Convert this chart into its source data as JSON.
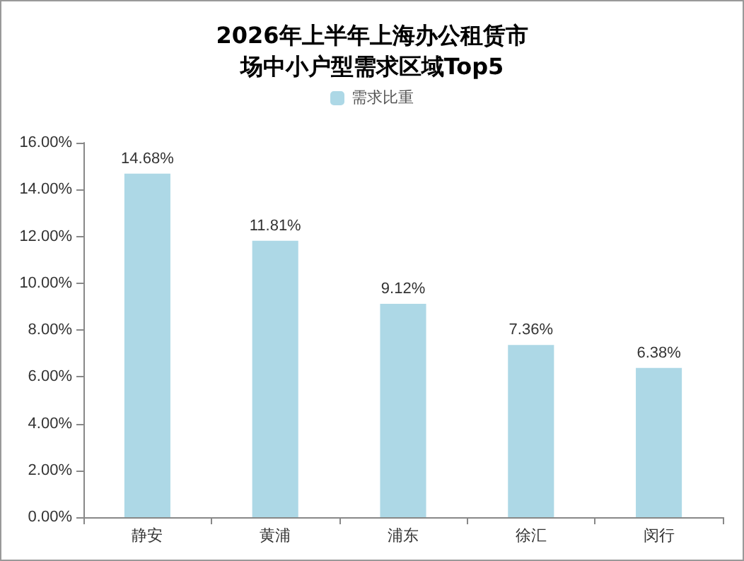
{
  "chart_data": {
    "type": "bar",
    "title": "2026年上半年上海办公租赁市场中小户型需求区域Top5",
    "categories": [
      "静安",
      "黄浦",
      "浦东",
      "徐汇",
      "闵行"
    ],
    "series": [
      {
        "name": "需求比重",
        "color": "#add8e6",
        "values": [
          14.68,
          11.81,
          9.12,
          7.36,
          6.38
        ],
        "value_labels": [
          "14.68%",
          "11.81%",
          "9.12%",
          "7.36%",
          "6.38%"
        ]
      }
    ],
    "ylim": [
      0,
      16
    ],
    "yticks": [
      {
        "value": 0,
        "label": "0.00%"
      },
      {
        "value": 2,
        "label": "2.00%"
      },
      {
        "value": 4,
        "label": "4.00%"
      },
      {
        "value": 6,
        "label": "6.00%"
      },
      {
        "value": 8,
        "label": "8.00%"
      },
      {
        "value": 10,
        "label": "10.00%"
      },
      {
        "value": 12,
        "label": "12.00%"
      },
      {
        "value": 14,
        "label": "14.00%"
      },
      {
        "value": 16,
        "label": "16.00%"
      }
    ],
    "grid": false,
    "legend": "top"
  }
}
